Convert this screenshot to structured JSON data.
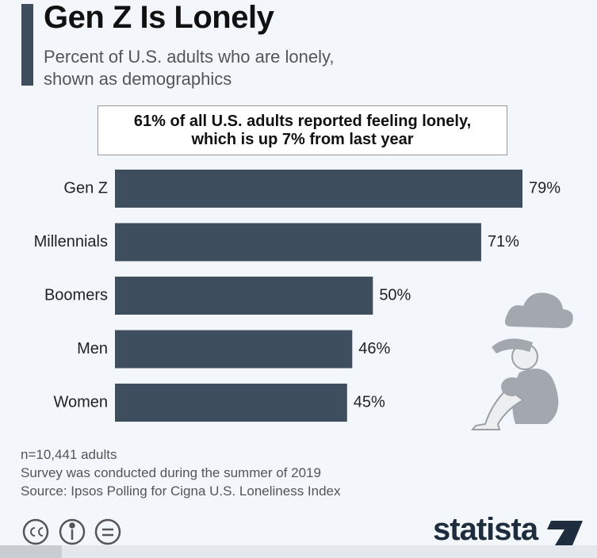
{
  "chart_data": {
    "type": "bar",
    "orientation": "horizontal",
    "title": "Gen Z Is Lonely",
    "subtitle": "Percent of U.S. adults who are lonely, shown as demographics",
    "annotation": "61% of all U.S. adults reported feeling lonely, which is up 7% from last year",
    "categories": [
      "Gen Z",
      "Millennials",
      "Boomers",
      "Men",
      "Women"
    ],
    "values": [
      79,
      71,
      50,
      46,
      45
    ],
    "value_labels": [
      "79%",
      "71%",
      "50%",
      "46%",
      "45%"
    ],
    "color": "#3f4e5e",
    "notes": [
      "n=10,441 adults",
      "Survey was conducted during the summer of 2019",
      "Source: Ipsos Polling for Cigna U.S. Loneliness Index"
    ],
    "logo": "statista"
  }
}
